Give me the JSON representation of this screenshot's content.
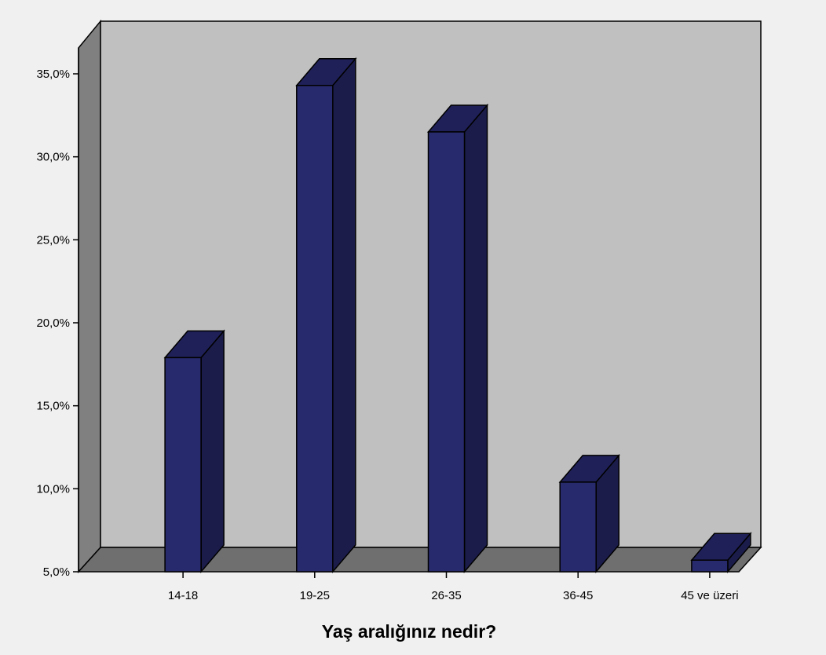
{
  "chart_data": {
    "type": "bar",
    "style": "3d",
    "categories": [
      "14-18",
      "19-25",
      "26-35",
      "36-45",
      "45 ve üzeri"
    ],
    "values": [
      17.9,
      34.3,
      31.5,
      10.4,
      5.7
    ],
    "title": "",
    "xlabel": "Yaş aralığınız nedir?",
    "ylabel": "",
    "ylim": [
      5,
      35
    ],
    "yticks": [
      "5,0%",
      "10,0%",
      "15,0%",
      "20,0%",
      "25,0%",
      "30,0%",
      "35,0%"
    ],
    "grid": false,
    "colors": {
      "bar_front": "#282a6e",
      "bar_side": "#1b1c4a",
      "bar_top": "#1f2058",
      "back_wall": "#c0c0c0",
      "floor": "#6f6f6f",
      "side_wall": "#808080",
      "page_background": "#f0f0f0"
    }
  }
}
